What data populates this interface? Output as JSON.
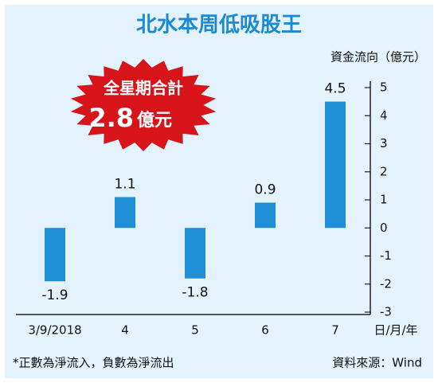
{
  "chart_data": {
    "type": "bar",
    "title": "北水本周低吸股王",
    "y_axis_label": "資金流向（億元）",
    "x_axis_label": "日/月/年",
    "categories": [
      "3/9/2018",
      "4",
      "5",
      "6",
      "7"
    ],
    "values": [
      -1.9,
      1.1,
      -1.8,
      0.9,
      4.5
    ],
    "color": "#1e8fd6",
    "ylim": [
      -3,
      5
    ],
    "yticks": [
      -3,
      -2,
      -1,
      0,
      1,
      2,
      3,
      4,
      5
    ],
    "badge_title": "全星期合計",
    "badge_total": 2.8,
    "badge_unit": "億元",
    "footnote": "*正數為淨流入，負數為淨流出",
    "source": "資料來源：Wind"
  }
}
